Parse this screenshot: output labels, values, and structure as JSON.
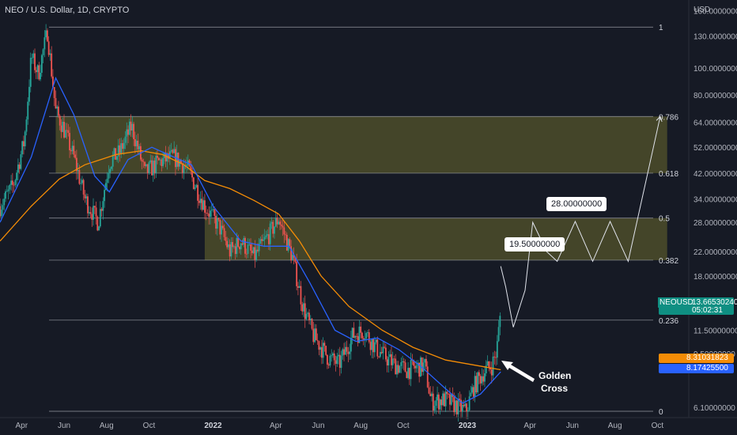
{
  "header": {
    "title": "NEO / U.S. Dollar, 1D, CRYPTO",
    "currency": "USD"
  },
  "price_axis": {
    "ticks": [
      "160.00000000",
      "130.00000000",
      "100.00000000",
      "80.00000000",
      "64.00000000",
      "52.00000000",
      "42.00000000",
      "34.00000000",
      "28.00000000",
      "22.00000000",
      "18.00000000",
      "11.50000000",
      "9.50000000",
      "6.10000000"
    ],
    "tick_values": [
      160,
      130,
      100,
      80,
      64,
      52,
      42,
      34,
      28,
      22,
      18,
      11.5,
      9.5,
      6.1
    ]
  },
  "time_axis": {
    "labels": [
      "Apr",
      "Jun",
      "Aug",
      "Oct",
      "2022",
      "Apr",
      "Jun",
      "Aug",
      "Oct",
      "2023",
      "Apr",
      "Jun",
      "Aug",
      "Oct"
    ],
    "dates": [
      "2021-04-01",
      "2021-06-01",
      "2021-08-01",
      "2021-10-01",
      "2022-01-01",
      "2022-04-01",
      "2022-06-01",
      "2022-08-01",
      "2022-10-01",
      "2023-01-01",
      "2023-04-01",
      "2023-06-01",
      "2023-08-01",
      "2023-10-01"
    ]
  },
  "last_price": {
    "symbol": "NEOUSD",
    "price": "13.66530240",
    "countdown": "05:02:31"
  },
  "ma_labels": {
    "ma_orange": "8.31031823",
    "ma_blue": "8.17425500"
  },
  "annotations": {
    "target1": "19.50000000",
    "target2": "28.00000000",
    "golden_cross_line1": "Golden",
    "golden_cross_line2": "Cross"
  },
  "colors": {
    "background": "#161a25",
    "up": "#26a69a",
    "down": "#ef5350",
    "ma_orange": "#f48c06",
    "ma_blue": "#2962ff",
    "zone": "#6b6a2e"
  },
  "chart_data": {
    "type": "candlestick",
    "title": "NEO / U.S. Dollar, 1D, CRYPTO",
    "y_scale": "log",
    "ylim": [
      5.6,
      175
    ],
    "xlim": [
      "2021-03-01",
      "2023-11-15"
    ],
    "fib_levels": [
      {
        "label": "1",
        "price": 140
      },
      {
        "label": "0.786",
        "price": 67
      },
      {
        "label": "0.618",
        "price": 42
      },
      {
        "label": "0.5",
        "price": 29
      },
      {
        "label": "0.382",
        "price": 20.5
      },
      {
        "label": "0.236",
        "price": 12.5
      },
      {
        "label": "0",
        "price": 5.9
      }
    ],
    "zones": [
      {
        "start": "2021-05-20",
        "end": "2023-10-15",
        "high": 67,
        "low": 42
      },
      {
        "start": "2021-12-20",
        "end": "2023-10-15",
        "high": 29,
        "low": 20.5
      }
    ],
    "price_path": [
      {
        "date": "2021-03-01",
        "price": 32
      },
      {
        "date": "2021-03-20",
        "price": 38
      },
      {
        "date": "2021-04-05",
        "price": 55
      },
      {
        "date": "2021-04-15",
        "price": 110
      },
      {
        "date": "2021-04-25",
        "price": 95
      },
      {
        "date": "2021-05-08",
        "price": 135
      },
      {
        "date": "2021-05-20",
        "price": 70
      },
      {
        "date": "2021-05-30",
        "price": 62
      },
      {
        "date": "2021-06-15",
        "price": 48
      },
      {
        "date": "2021-07-01",
        "price": 34
      },
      {
        "date": "2021-07-20",
        "price": 28
      },
      {
        "date": "2021-08-05",
        "price": 46
      },
      {
        "date": "2021-08-20",
        "price": 50
      },
      {
        "date": "2021-09-06",
        "price": 62
      },
      {
        "date": "2021-09-25",
        "price": 42
      },
      {
        "date": "2021-10-15",
        "price": 46
      },
      {
        "date": "2021-11-05",
        "price": 48
      },
      {
        "date": "2021-11-25",
        "price": 44
      },
      {
        "date": "2021-12-20",
        "price": 32
      },
      {
        "date": "2022-01-10",
        "price": 27
      },
      {
        "date": "2022-01-25",
        "price": 22
      },
      {
        "date": "2022-02-10",
        "price": 24
      },
      {
        "date": "2022-03-01",
        "price": 21
      },
      {
        "date": "2022-03-25",
        "price": 26
      },
      {
        "date": "2022-04-05",
        "price": 29
      },
      {
        "date": "2022-04-25",
        "price": 21
      },
      {
        "date": "2022-05-10",
        "price": 14
      },
      {
        "date": "2022-05-25",
        "price": 11
      },
      {
        "date": "2022-06-15",
        "price": 9.2
      },
      {
        "date": "2022-07-01",
        "price": 8.7
      },
      {
        "date": "2022-07-20",
        "price": 11
      },
      {
        "date": "2022-08-05",
        "price": 11.5
      },
      {
        "date": "2022-08-25",
        "price": 9.8
      },
      {
        "date": "2022-09-15",
        "price": 8.8
      },
      {
        "date": "2022-10-05",
        "price": 8.3
      },
      {
        "date": "2022-11-01",
        "price": 8.6
      },
      {
        "date": "2022-11-10",
        "price": 6.4
      },
      {
        "date": "2022-12-01",
        "price": 6.5
      },
      {
        "date": "2022-12-30",
        "price": 5.9
      },
      {
        "date": "2023-01-10",
        "price": 7.2
      },
      {
        "date": "2023-01-25",
        "price": 8.2
      },
      {
        "date": "2023-02-05",
        "price": 8.6
      },
      {
        "date": "2023-02-12",
        "price": 9.6
      },
      {
        "date": "2023-02-18",
        "price": 13.66
      }
    ],
    "series": [
      {
        "color": "#f48c06",
        "points": [
          {
            "date": "2021-03-01",
            "price": 24
          },
          {
            "date": "2021-04-15",
            "price": 32
          },
          {
            "date": "2021-05-25",
            "price": 40
          },
          {
            "date": "2021-07-01",
            "price": 45
          },
          {
            "date": "2021-08-15",
            "price": 49
          },
          {
            "date": "2021-09-20",
            "price": 50.5
          },
          {
            "date": "2021-10-20",
            "price": 49
          },
          {
            "date": "2021-11-20",
            "price": 45
          },
          {
            "date": "2021-12-20",
            "price": 39.5
          },
          {
            "date": "2022-01-25",
            "price": 37
          },
          {
            "date": "2022-03-01",
            "price": 33.5
          },
          {
            "date": "2022-04-05",
            "price": 30
          },
          {
            "date": "2022-05-05",
            "price": 24
          },
          {
            "date": "2022-06-05",
            "price": 18
          },
          {
            "date": "2022-07-15",
            "price": 14
          },
          {
            "date": "2022-09-01",
            "price": 11.5
          },
          {
            "date": "2022-10-15",
            "price": 10
          },
          {
            "date": "2022-12-01",
            "price": 9
          },
          {
            "date": "2023-01-15",
            "price": 8.6
          },
          {
            "date": "2023-02-18",
            "price": 8.31
          }
        ]
      },
      {
        "color": "#2962ff",
        "points": [
          {
            "date": "2021-03-01",
            "price": 28
          },
          {
            "date": "2021-04-15",
            "price": 48
          },
          {
            "date": "2021-05-20",
            "price": 92
          },
          {
            "date": "2021-06-15",
            "price": 68
          },
          {
            "date": "2021-07-15",
            "price": 41
          },
          {
            "date": "2021-08-05",
            "price": 36
          },
          {
            "date": "2021-09-01",
            "price": 47
          },
          {
            "date": "2021-10-05",
            "price": 52
          },
          {
            "date": "2021-11-05",
            "price": 48
          },
          {
            "date": "2021-12-01",
            "price": 45
          },
          {
            "date": "2022-01-01",
            "price": 32
          },
          {
            "date": "2022-02-10",
            "price": 24
          },
          {
            "date": "2022-03-15",
            "price": 23
          },
          {
            "date": "2022-04-20",
            "price": 23
          },
          {
            "date": "2022-05-20",
            "price": 17
          },
          {
            "date": "2022-06-25",
            "price": 11.5
          },
          {
            "date": "2022-07-25",
            "price": 10.5
          },
          {
            "date": "2022-08-25",
            "price": 10.8
          },
          {
            "date": "2022-09-25",
            "price": 9.8
          },
          {
            "date": "2022-10-25",
            "price": 8.6
          },
          {
            "date": "2022-12-01",
            "price": 7.1
          },
          {
            "date": "2022-12-25",
            "price": 6.3
          },
          {
            "date": "2023-01-20",
            "price": 6.8
          },
          {
            "date": "2023-02-18",
            "price": 8.17
          }
        ]
      }
    ],
    "projection": [
      {
        "date": "2023-02-18",
        "price": 19.5
      },
      {
        "date": "2023-02-25",
        "price": 16.5
      },
      {
        "date": "2023-03-08",
        "price": 11.8
      },
      {
        "date": "2023-03-25",
        "price": 16
      },
      {
        "date": "2023-04-05",
        "price": 28
      },
      {
        "date": "2023-04-25",
        "price": 22
      },
      {
        "date": "2023-05-10",
        "price": 20.3
      },
      {
        "date": "2023-06-05",
        "price": 28.2
      },
      {
        "date": "2023-06-30",
        "price": 20.3
      },
      {
        "date": "2023-07-25",
        "price": 28.2
      },
      {
        "date": "2023-08-20",
        "price": 20.3
      },
      {
        "date": "2023-10-05",
        "price": 67
      }
    ]
  }
}
